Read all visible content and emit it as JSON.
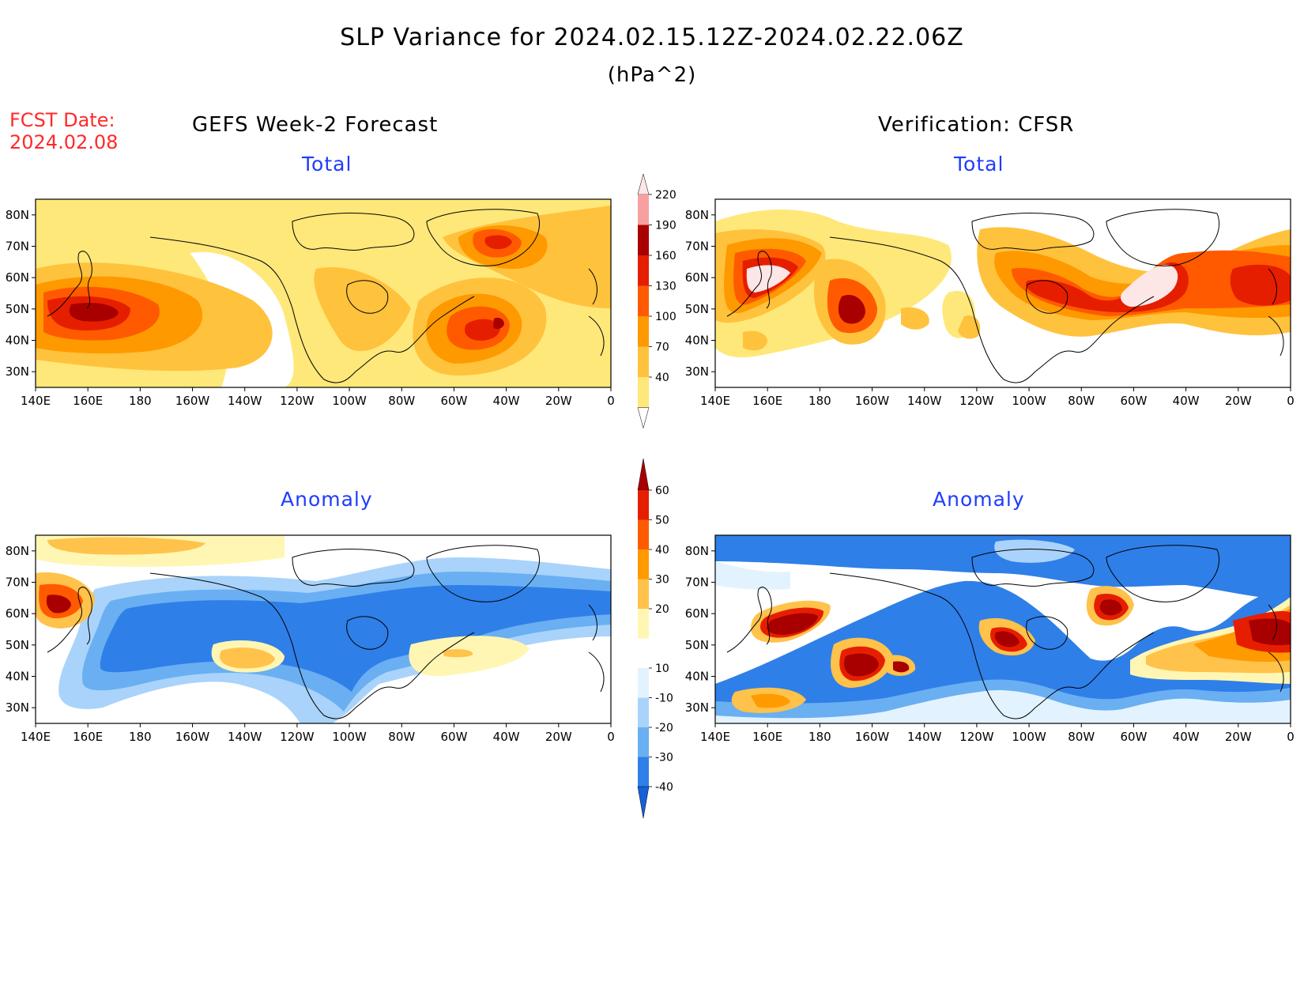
{
  "header": {
    "title": "SLP Variance for 2024.02.15.12Z-2024.02.22.06Z",
    "units": "(hPa^2)",
    "fcst_label": "FCST Date:",
    "fcst_date": "2024.02.08"
  },
  "columns": {
    "left": "GEFS Week-2 Forecast",
    "right": "Verification: CFSR"
  },
  "panels": {
    "gefs_total": "Total",
    "cfsr_total": "Total",
    "gefs_anomaly": "Anomaly",
    "cfsr_anomaly": "Anomaly"
  },
  "axes": {
    "lon_labels": [
      "140E",
      "160E",
      "180",
      "160W",
      "140W",
      "120W",
      "100W",
      "80W",
      "60W",
      "40W",
      "20W",
      "0"
    ],
    "lat_labels": [
      "80N",
      "70N",
      "60N",
      "50N",
      "40N",
      "30N"
    ]
  },
  "colorbars": {
    "total": {
      "levels": [
        "40",
        "70",
        "100",
        "130",
        "160",
        "190",
        "220"
      ],
      "colors": [
        "#ffe87a",
        "#ffc23d",
        "#ff9900",
        "#ff5a00",
        "#e61e00",
        "#a80000",
        "#f7a0a0",
        "#fde6e6"
      ]
    },
    "anomaly": {
      "levels": [
        "-40",
        "-30",
        "-20",
        "-10",
        "10",
        "20",
        "30",
        "40",
        "50",
        "60"
      ],
      "colors": [
        "#1560d8",
        "#2f7fe8",
        "#6aaff2",
        "#a9d3fa",
        "#e2f3ff",
        "#ffffff",
        "#fff6b3",
        "#ffc24a",
        "#ff9a00",
        "#ff5a00",
        "#e61e00",
        "#a80000"
      ]
    }
  }
}
